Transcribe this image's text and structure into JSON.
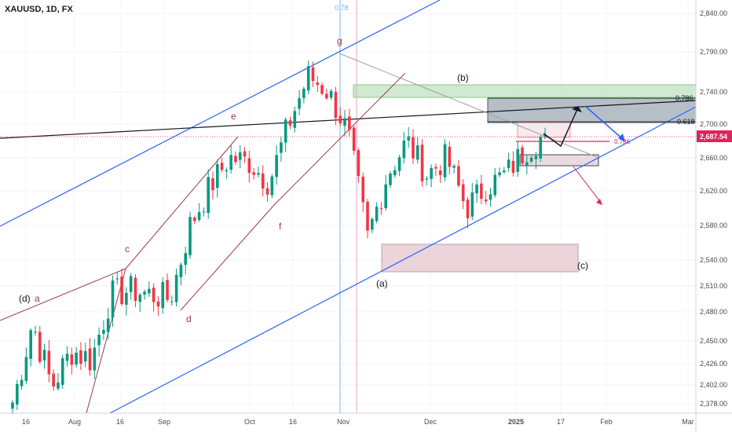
{
  "symbol": "XAUUSD, 1D, FX",
  "colors": {
    "up": "#089981",
    "down": "#f23645",
    "channel": "#2962ff",
    "wave": "#9c3b48",
    "trendline": "#131722",
    "fib_vertical": "#7fb5e6",
    "supply_zone": "#c8e6c9",
    "pink_zone": "#e9cdd5",
    "grey_zone": "#9eaab3",
    "price_tag": "#e0245e"
  },
  "price_axis": {
    "ticks": [
      2378,
      2402,
      2426,
      2450,
      2480,
      2510,
      2540,
      2580,
      2620,
      2660,
      2700,
      2740,
      2790,
      2840
    ],
    "tick_labels": [
      "2,378.00",
      "2,402.00",
      "2,426.00",
      "2,450.00",
      "2,480.00",
      "2,510.00",
      "2,540.00",
      "2,580.00",
      "2,620.00",
      "2,660.00",
      "2,700.00",
      "2,740.00",
      "2,790.00",
      "2,840.00"
    ],
    "current_price": 2687.54,
    "current_price_label": "2,687.54"
  },
  "time_axis": {
    "labels": [
      "16",
      "Aug",
      "16",
      "Sep",
      "Oct",
      "16",
      "Nov",
      "Dec",
      "2025",
      "17",
      "Feb",
      "Mar"
    ]
  },
  "annotations": {
    "fib_top": "0.78",
    "fib_786": "0.786",
    "fib_618": "0.618",
    "fib_small": "0.786"
  },
  "wave_labels": [
    "(d)",
    "a",
    "c",
    "d",
    "e",
    "f",
    "g",
    "(a)",
    "(b)",
    "(c)"
  ],
  "chart_data": {
    "type": "candlestick",
    "symbol": "XAUUSD",
    "timeframe": "1D",
    "x": [
      "2024-07-11",
      "2024-07-18",
      "2024-07-25",
      "2024-08-01",
      "2024-08-08",
      "2024-08-15",
      "2024-08-22",
      "2024-08-29",
      "2024-09-05",
      "2024-09-12",
      "2024-09-19",
      "2024-09-26",
      "2024-10-03",
      "2024-10-10",
      "2024-10-17",
      "2024-10-24",
      "2024-10-31",
      "2024-11-07",
      "2024-11-14",
      "2024-11-21",
      "2024-11-28",
      "2024-12-05",
      "2024-12-12",
      "2024-12-19",
      "2024-12-26",
      "2025-01-02",
      "2025-01-09",
      "2025-01-10"
    ],
    "close_approx": [
      2380,
      2470,
      2400,
      2440,
      2430,
      2500,
      2505,
      2500,
      2495,
      2580,
      2625,
      2660,
      2655,
      2630,
      2700,
      2760,
      2740,
      2690,
      2565,
      2640,
      2680,
      2640,
      2660,
      2600,
      2625,
      2640,
      2670,
      2687.54
    ],
    "ylim": [
      2370,
      2850
    ],
    "title": "",
    "xlabel": "",
    "ylabel": ""
  }
}
